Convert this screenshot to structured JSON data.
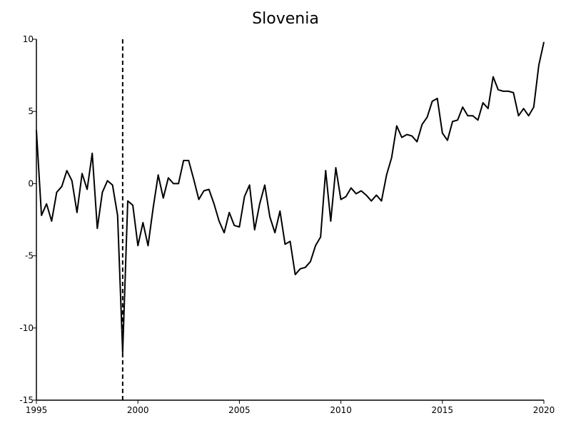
{
  "chart_data": {
    "type": "line",
    "title": "Slovenia",
    "xlabel": "",
    "ylabel": "",
    "xlim": [
      1995,
      2020
    ],
    "ylim": [
      -15,
      10
    ],
    "x_ticks": [
      1995,
      2000,
      2005,
      2010,
      2015,
      2020
    ],
    "y_ticks": [
      -15,
      -10,
      -5,
      0,
      5,
      10
    ],
    "grid": false,
    "legend": "none",
    "vertical_marker": 1999.25,
    "colors": {
      "line": "#000000",
      "axis": "#000000"
    },
    "series": [
      {
        "x": [
          1995.0,
          1995.25,
          1995.5,
          1995.75,
          1996.0,
          1996.25,
          1996.5,
          1996.75,
          1997.0,
          1997.25,
          1997.5,
          1997.75,
          1998.0,
          1998.25,
          1998.5,
          1998.75,
          1999.0,
          1999.25,
          1999.5,
          1999.75,
          2000.0,
          2000.25,
          2000.5,
          2000.75,
          2001.0,
          2001.25,
          2001.5,
          2001.75,
          2002.0,
          2002.25,
          2002.5,
          2002.75,
          2003.0,
          2003.25,
          2003.5,
          2003.75,
          2004.0,
          2004.25,
          2004.5,
          2004.75,
          2005.0,
          2005.25,
          2005.5,
          2005.75,
          2006.0,
          2006.25,
          2006.5,
          2006.75,
          2007.0,
          2007.25,
          2007.5,
          2007.75,
          2008.0,
          2008.25,
          2008.5,
          2008.75,
          2009.0,
          2009.25,
          2009.5,
          2009.75,
          2010.0,
          2010.25,
          2010.5,
          2010.75,
          2011.0,
          2011.25,
          2011.5,
          2011.75,
          2012.0,
          2012.25,
          2012.5,
          2012.75,
          2013.0,
          2013.25,
          2013.5,
          2013.75,
          2014.0,
          2014.25,
          2014.5,
          2014.75,
          2015.0,
          2015.25,
          2015.5,
          2015.75,
          2016.0,
          2016.25,
          2016.5,
          2016.75,
          2017.0,
          2017.25,
          2017.5,
          2017.75,
          2018.0,
          2018.25,
          2018.5,
          2018.75,
          2019.0,
          2019.25,
          2019.5,
          2019.75,
          2020.0
        ],
        "y": [
          3.7,
          -2.2,
          -1.4,
          -2.6,
          -0.6,
          -0.2,
          0.9,
          0.2,
          -2.0,
          0.7,
          -0.4,
          2.1,
          -3.1,
          -0.6,
          0.2,
          -0.1,
          -2.2,
          -11.7,
          -1.2,
          -1.5,
          -4.3,
          -2.7,
          -4.3,
          -1.7,
          0.6,
          -1.0,
          0.4,
          0.0,
          0.0,
          1.6,
          1.6,
          0.3,
          -1.1,
          -0.5,
          -0.4,
          -1.4,
          -2.6,
          -3.4,
          -2.0,
          -2.9,
          -3.0,
          -0.9,
          -0.1,
          -3.2,
          -1.4,
          -0.1,
          -2.3,
          -3.4,
          -1.9,
          -4.2,
          -4.0,
          -6.3,
          -5.9,
          -5.8,
          -5.4,
          -4.3,
          -3.7,
          0.9,
          -2.6,
          1.1,
          -1.1,
          -0.9,
          -0.3,
          -0.7,
          -0.5,
          -0.8,
          -1.2,
          -0.8,
          -1.2,
          0.6,
          1.8,
          4.0,
          3.2,
          3.4,
          3.3,
          2.9,
          4.1,
          4.6,
          5.7,
          5.9,
          3.5,
          3.0,
          4.3,
          4.4,
          5.3,
          4.7,
          4.7,
          4.4,
          5.6,
          5.2,
          7.4,
          6.5,
          6.4,
          6.4,
          6.3,
          4.7,
          5.2,
          4.7,
          5.3,
          8.2,
          9.8
        ]
      }
    ]
  }
}
